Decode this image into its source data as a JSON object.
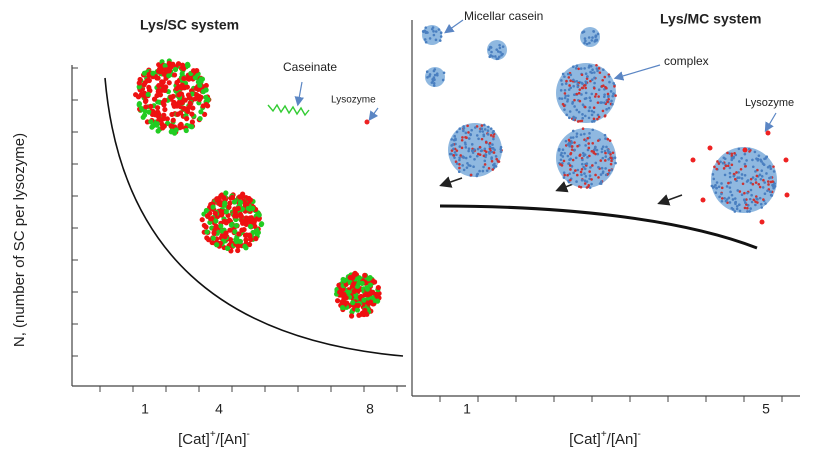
{
  "left_panel": {
    "title": "Lys/SC system",
    "caseinate_label": "Caseinate",
    "lysozyme_label": "Lysozyme",
    "y_axis_label": "N, (number of SC per lysozyme)",
    "x_tick_labels": [
      "1",
      "4",
      "8"
    ],
    "x_axis_label": [
      "[Cat]",
      "+",
      "/[An]",
      "-"
    ]
  },
  "right_panel": {
    "title": "Lys/MC system",
    "micellar_casein_label": "Micellar  casein",
    "complex_label": "complex",
    "lysozyme_label": "Lysozyme",
    "x_tick_labels": [
      "1",
      "5"
    ],
    "x_axis_label": [
      "[Cat]",
      "+",
      "/[An]",
      "-"
    ]
  }
}
